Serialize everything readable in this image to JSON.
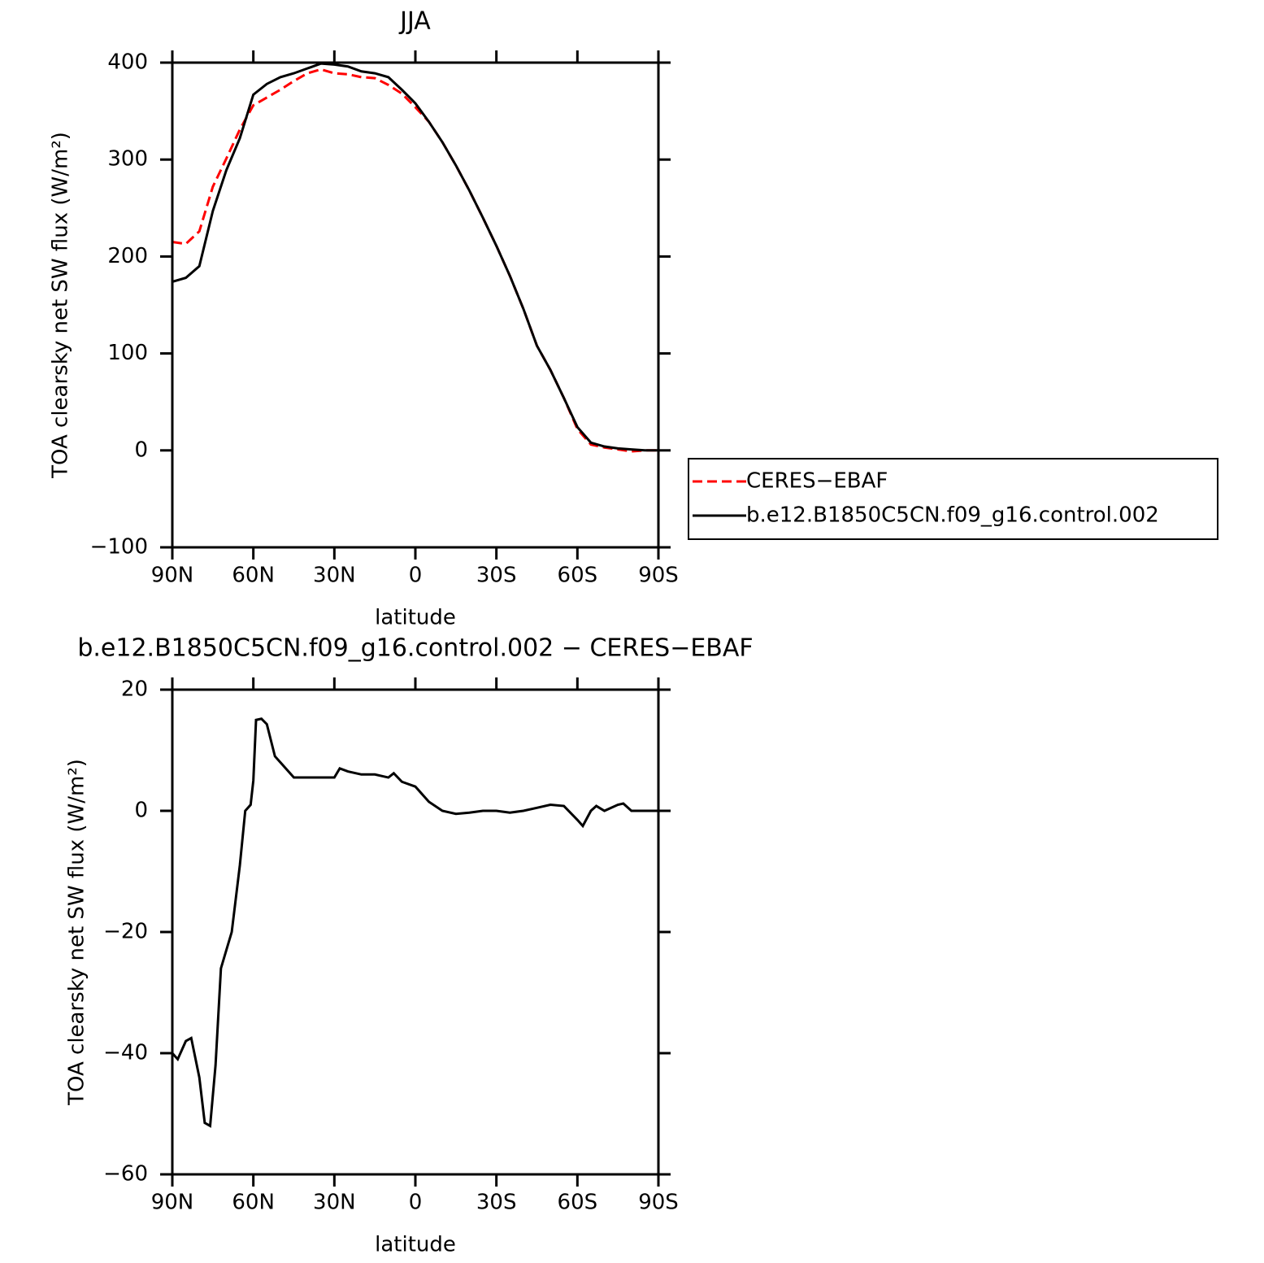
{
  "chart_data": [
    {
      "type": "line",
      "title": "JJA",
      "xlabel": "latitude",
      "ylabel": "TOA clearsky net SW flux (W/m²)",
      "x": [
        90,
        85,
        80,
        75,
        70,
        65,
        60,
        55,
        50,
        45,
        40,
        35,
        30,
        25,
        20,
        15,
        10,
        5,
        0,
        -5,
        -10,
        -15,
        -20,
        -25,
        -30,
        -35,
        -40,
        -45,
        -50,
        -55,
        -60,
        -65,
        -70,
        -75,
        -80,
        -85,
        -90
      ],
      "xlim": [
        90,
        -90
      ],
      "xticks": [
        {
          "value": 90,
          "label": "90N"
        },
        {
          "value": 60,
          "label": "60N"
        },
        {
          "value": 30,
          "label": "30N"
        },
        0,
        {
          "value": -30,
          "label": "30S"
        },
        {
          "value": -60,
          "label": "60S"
        },
        {
          "value": -90,
          "label": "90S"
        }
      ],
      "ylim": [
        -100,
        400
      ],
      "yticks": [
        {
          "value": -100,
          "label": "−100"
        },
        0,
        100,
        200,
        300,
        400
      ],
      "legend": "right",
      "series": [
        {
          "name": "CERES−EBAF",
          "color": "#ff0000",
          "linestyle": "dashed",
          "values": [
            215,
            213,
            226,
            272,
            301,
            331,
            356,
            364,
            372,
            381,
            389,
            393,
            389,
            388,
            385,
            384,
            377,
            368,
            354,
            339,
            318,
            294,
            268,
            240,
            211,
            180,
            146,
            108,
            83,
            54,
            22,
            6,
            3,
            1,
            -1,
            0,
            0
          ]
        },
        {
          "name": "b.e12.B1850C5CN.f09_g16.control.002",
          "color": "#000000",
          "linestyle": "solid",
          "values": [
            174,
            178,
            190,
            247,
            289,
            322,
            367,
            378,
            385,
            389,
            394,
            399,
            398,
            396,
            391,
            389,
            385,
            372,
            358,
            339,
            318,
            294,
            268,
            240,
            211,
            180,
            146,
            108,
            83,
            54,
            24,
            8,
            4,
            2,
            1,
            0,
            0
          ]
        }
      ]
    },
    {
      "type": "line",
      "title": "b.e12.B1850C5CN.f09_g16.control.002 − CERES−EBAF",
      "xlabel": "latitude",
      "ylabel": "TOA clearsky net SW flux (W/m²)",
      "x": [
        90,
        88,
        85,
        83,
        80,
        78,
        76,
        74,
        72,
        70,
        68,
        65,
        63,
        61,
        60,
        59,
        57,
        55,
        52,
        50,
        45,
        40,
        35,
        30,
        28,
        25,
        20,
        15,
        10,
        8,
        5,
        0,
        -5,
        -10,
        -15,
        -20,
        -25,
        -30,
        -35,
        -40,
        -45,
        -50,
        -55,
        -60,
        -62,
        -65,
        -67,
        -70,
        -75,
        -77,
        -80,
        -85,
        -90
      ],
      "xlim": [
        90,
        -90
      ],
      "xticks": [
        {
          "value": 90,
          "label": "90N"
        },
        {
          "value": 60,
          "label": "60N"
        },
        {
          "value": 30,
          "label": "30N"
        },
        0,
        {
          "value": -30,
          "label": "30S"
        },
        {
          "value": -60,
          "label": "60S"
        },
        {
          "value": -90,
          "label": "90S"
        }
      ],
      "ylim": [
        -60,
        20
      ],
      "yticks": [
        {
          "value": -60,
          "label": "−60"
        },
        {
          "value": -40,
          "label": "−40"
        },
        {
          "value": -20,
          "label": "−20"
        },
        0,
        20
      ],
      "series": [
        {
          "color": "#000000",
          "linestyle": "solid",
          "values": [
            -40,
            -41,
            -38,
            -37.5,
            -44,
            -51.5,
            -52,
            -42,
            -26,
            -23,
            -20,
            -9,
            0,
            1,
            5,
            15,
            15.2,
            14.3,
            9,
            8,
            5.5,
            5.5,
            5.5,
            5.5,
            7,
            6.5,
            6,
            6,
            5.5,
            6.2,
            4.8,
            4,
            1.5,
            0,
            -0.5,
            -0.3,
            0,
            0,
            -0.3,
            0,
            0.5,
            1,
            0.8,
            -1.5,
            -2.5,
            0,
            0.8,
            0,
            1,
            1.2,
            0,
            0,
            0
          ]
        }
      ]
    }
  ]
}
